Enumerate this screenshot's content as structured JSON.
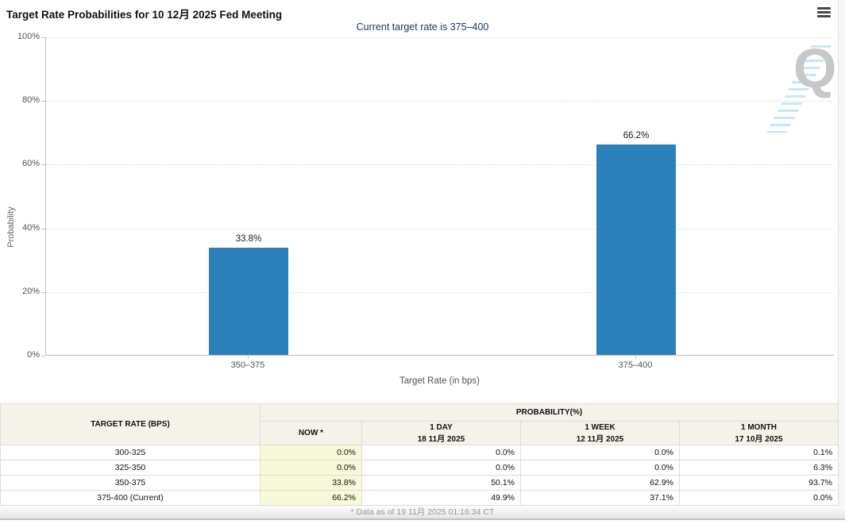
{
  "header": {
    "title": "Target Rate Probabilities for 10 12月 2025 Fed Meeting",
    "subtitle": "Current target rate is 375–400"
  },
  "chart_data": {
    "type": "bar",
    "title": "Target Rate Probabilities for 10 12月 2025 Fed Meeting",
    "categories": [
      "350–375",
      "375–400"
    ],
    "values": [
      33.8,
      66.2
    ],
    "value_labels": [
      "33.8%",
      "66.2%"
    ],
    "xlabel": "Target Rate (in bps)",
    "ylabel": "Probability",
    "ylim": [
      0,
      100
    ],
    "yticks": [
      "0%",
      "20%",
      "40%",
      "60%",
      "80%",
      "100%"
    ],
    "grid": "horizontal-dotted",
    "legend": "none",
    "bar_color": "#2b80b9",
    "watermark_letter": "Q"
  },
  "table": {
    "row_header": "TARGET RATE (BPS)",
    "col_group_header": "PROBABILITY(%)",
    "columns": [
      {
        "label": "NOW *",
        "sublabel": ""
      },
      {
        "label": "1 DAY",
        "sublabel": "18 11月 2025"
      },
      {
        "label": "1 WEEK",
        "sublabel": "12 11月 2025"
      },
      {
        "label": "1 MONTH",
        "sublabel": "17 10月 2025"
      }
    ],
    "rows": [
      {
        "label": "300-325",
        "values": [
          "0.0%",
          "0.0%",
          "0.0%",
          "0.1%"
        ]
      },
      {
        "label": "325-350",
        "values": [
          "0.0%",
          "0.0%",
          "0.0%",
          "6.3%"
        ]
      },
      {
        "label": "350-375",
        "values": [
          "33.8%",
          "50.1%",
          "62.9%",
          "93.7%"
        ]
      },
      {
        "label": "375-400 (Current)",
        "values": [
          "66.2%",
          "49.9%",
          "37.1%",
          "0.0%"
        ]
      }
    ]
  },
  "footer": {
    "note": "* Data as of 19 11月 2025 01:16:34 CT"
  },
  "colors": {
    "bar": "#2b80b9",
    "subtitle_text": "#1f3864",
    "header_bg": "#f5f2ea",
    "now_column_bg": "#f8f9d8"
  }
}
